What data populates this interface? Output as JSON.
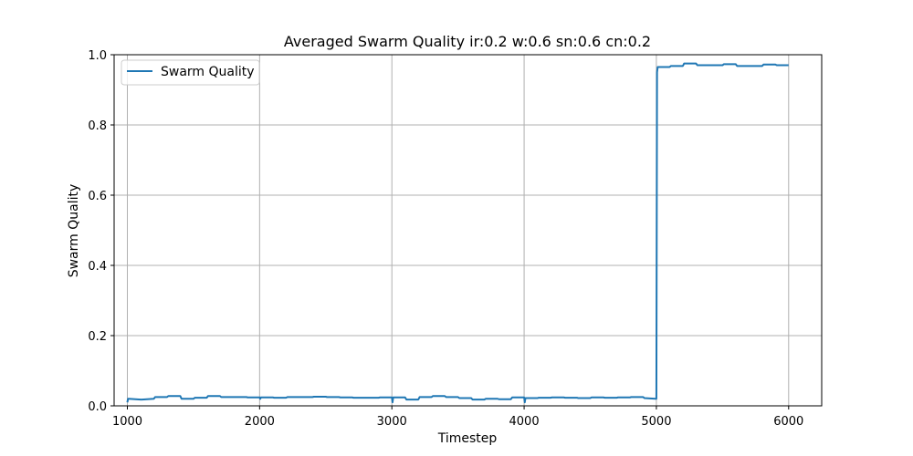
{
  "chart_data": {
    "type": "line",
    "title": "Averaged Swarm Quality ir:0.2 w:0.6 sn:0.6 cn:0.2",
    "xlabel": "Timestep",
    "ylabel": "Swarm Quality",
    "xlim": [
      900,
      6250
    ],
    "ylim": [
      0.0,
      1.0
    ],
    "xticks": [
      1000,
      2000,
      3000,
      4000,
      5000,
      6000
    ],
    "yticks": [
      0.0,
      0.2,
      0.4,
      0.6,
      0.8,
      1.0
    ],
    "xtick_labels": [
      "1000",
      "2000",
      "3000",
      "4000",
      "5000",
      "6000"
    ],
    "ytick_labels": [
      "0.0",
      "0.2",
      "0.4",
      "0.6",
      "0.8",
      "1.0"
    ],
    "grid": true,
    "legend_position": "top-left",
    "series": [
      {
        "name": "Swarm Quality",
        "color": "#1f77b4",
        "x": [
          1000,
          1005,
          1010,
          1100,
          1110,
          1200,
          1210,
          1300,
          1310,
          1400,
          1410,
          1500,
          1510,
          1600,
          1610,
          1700,
          1710,
          1800,
          1810,
          1900,
          1910,
          2000,
          2005,
          2010,
          2100,
          2110,
          2200,
          2210,
          2300,
          2310,
          2400,
          2410,
          2500,
          2510,
          2600,
          2610,
          2700,
          2710,
          2800,
          2810,
          2900,
          2910,
          3000,
          3005,
          3010,
          3100,
          3110,
          3200,
          3210,
          3300,
          3310,
          3400,
          3410,
          3500,
          3510,
          3600,
          3610,
          3700,
          3710,
          3800,
          3810,
          3900,
          3910,
          4000,
          4005,
          4010,
          4100,
          4110,
          4200,
          4210,
          4300,
          4310,
          4400,
          4410,
          4500,
          4510,
          4600,
          4610,
          4700,
          4710,
          4800,
          4810,
          4900,
          4910,
          4995,
          5000,
          5005,
          5010,
          5020,
          5100,
          5110,
          5200,
          5210,
          5300,
          5310,
          5400,
          5410,
          5500,
          5510,
          5600,
          5610,
          5700,
          5710,
          5800,
          5810,
          5900,
          5910,
          6000
        ],
        "values": [
          0.01,
          0.02,
          0.02,
          0.018,
          0.018,
          0.02,
          0.025,
          0.025,
          0.028,
          0.028,
          0.02,
          0.02,
          0.023,
          0.023,
          0.028,
          0.028,
          0.025,
          0.025,
          0.025,
          0.025,
          0.024,
          0.024,
          0.02,
          0.024,
          0.024,
          0.023,
          0.023,
          0.025,
          0.025,
          0.025,
          0.025,
          0.026,
          0.026,
          0.025,
          0.025,
          0.024,
          0.024,
          0.023,
          0.023,
          0.023,
          0.023,
          0.024,
          0.024,
          0.01,
          0.024,
          0.024,
          0.018,
          0.018,
          0.025,
          0.025,
          0.028,
          0.028,
          0.025,
          0.025,
          0.022,
          0.022,
          0.018,
          0.018,
          0.02,
          0.02,
          0.019,
          0.019,
          0.024,
          0.024,
          0.01,
          0.022,
          0.022,
          0.023,
          0.023,
          0.024,
          0.024,
          0.023,
          0.023,
          0.022,
          0.022,
          0.024,
          0.024,
          0.023,
          0.023,
          0.024,
          0.024,
          0.025,
          0.025,
          0.022,
          0.02,
          0.02,
          0.95,
          0.965,
          0.965,
          0.965,
          0.968,
          0.968,
          0.975,
          0.975,
          0.97,
          0.97,
          0.97,
          0.97,
          0.973,
          0.973,
          0.968,
          0.968,
          0.968,
          0.968,
          0.972,
          0.972,
          0.97,
          0.97
        ]
      }
    ]
  }
}
